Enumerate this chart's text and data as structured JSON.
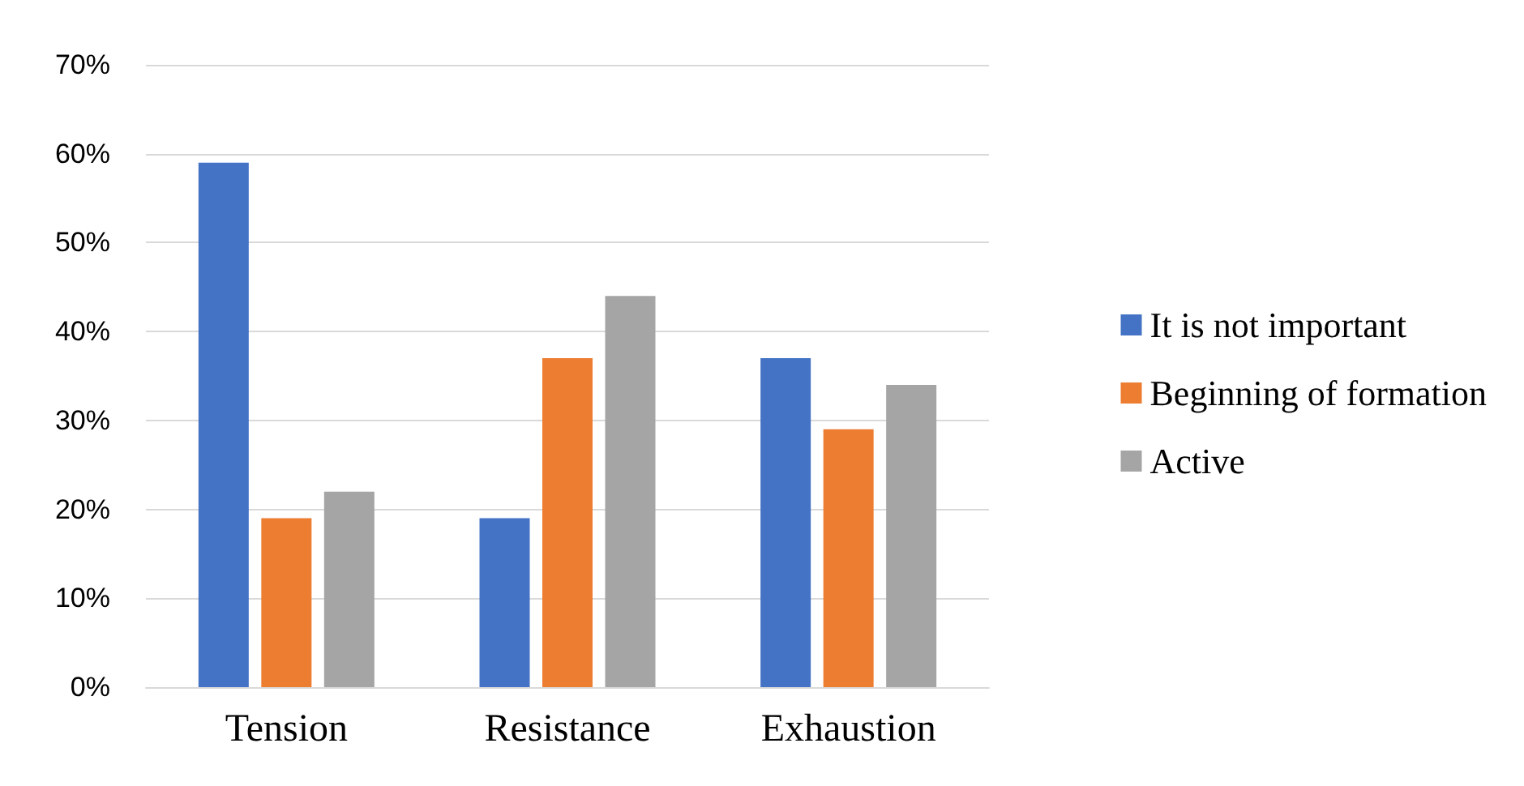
{
  "chart_data": {
    "type": "bar",
    "categories": [
      "Tension",
      "Resistance",
      "Exhaustion"
    ],
    "series": [
      {
        "name": "It is not important",
        "color": "#4472c4",
        "values": [
          59,
          19,
          37
        ]
      },
      {
        "name": "Beginning of formation",
        "color": "#ed7d31",
        "values": [
          19,
          37,
          29
        ]
      },
      {
        "name": "Active",
        "color": "#a5a5a5",
        "values": [
          22,
          44,
          34
        ]
      }
    ],
    "ylim": [
      0,
      70
    ],
    "yticks": [
      {
        "value": 0,
        "label": "0%"
      },
      {
        "value": 10,
        "label": "10%"
      },
      {
        "value": 20,
        "label": "20%"
      },
      {
        "value": 30,
        "label": "30%"
      },
      {
        "value": 40,
        "label": "40%"
      },
      {
        "value": 50,
        "label": "50%"
      },
      {
        "value": 60,
        "label": "60%"
      },
      {
        "value": 70,
        "label": "70%"
      }
    ],
    "grid": "y",
    "legend": "right"
  }
}
